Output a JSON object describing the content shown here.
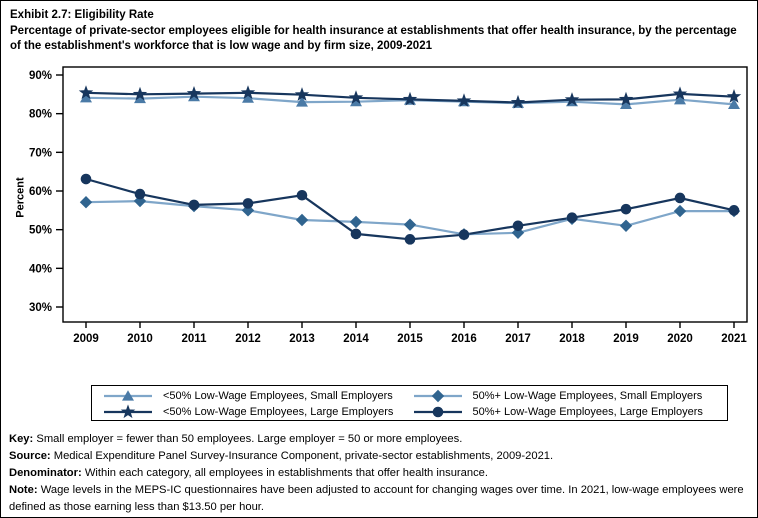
{
  "title": {
    "line1": "Exhibit 2.7: Eligibility Rate",
    "line2": "Percentage of private-sector employees eligible for health insurance at establishments that offer health insurance, by the percentage of the establishment's workforce that is low wage and by firm size, 2009-2021"
  },
  "chart_data": {
    "type": "line",
    "x": [
      2009,
      2010,
      2011,
      2012,
      2013,
      2014,
      2015,
      2016,
      2017,
      2018,
      2019,
      2020,
      2021
    ],
    "y_axis": {
      "label": "Percent",
      "ticks": [
        90,
        80,
        70,
        60,
        50,
        40,
        30
      ],
      "suffix": "%",
      "min": 30,
      "max": 90
    },
    "grid": false,
    "legend_position": "bottom",
    "series": [
      {
        "name": "<50% Low-Wage Employees, Small Employers",
        "marker": "triangle",
        "color": "#4A7AA6",
        "line_color": "#7FA6C9",
        "values": [
          84.1,
          83.9,
          84.4,
          84.0,
          83.0,
          83.1,
          83.5,
          83.1,
          82.7,
          83.1,
          82.4,
          83.6,
          82.4
        ]
      },
      {
        "name": "50%+ Low-Wage Employees, Small Employers",
        "marker": "diamond",
        "color": "#30648F",
        "line_color": "#7FA6C9",
        "values": [
          57.1,
          57.4,
          56.1,
          55.0,
          52.5,
          52.0,
          51.3,
          48.8,
          49.2,
          52.8,
          51.0,
          54.8,
          54.8
        ]
      },
      {
        "name": "<50% Low-Wage Employees, Large Employers",
        "marker": "star",
        "color": "#17365D",
        "line_color": "#17365D",
        "values": [
          85.4,
          85.0,
          85.2,
          85.4,
          84.9,
          84.1,
          83.7,
          83.3,
          82.9,
          83.6,
          83.7,
          85.1,
          84.4
        ]
      },
      {
        "name": "50%+ Low-Wage Employees, Large Employers",
        "marker": "circle",
        "color": "#17365D",
        "line_color": "#17365D",
        "values": [
          63.1,
          59.2,
          56.4,
          56.8,
          58.9,
          48.9,
          47.5,
          48.7,
          51.0,
          53.1,
          55.3,
          58.2,
          55.0
        ]
      }
    ]
  },
  "notes": [
    {
      "label": "Key:",
      "text": "Small employer = fewer than 50 employees. Large employer = 50 or more employees."
    },
    {
      "label": "Source:",
      "text": "Medical Expenditure Panel Survey-Insurance Component, private-sector establishments, 2009-2021."
    },
    {
      "label": "Denominator:",
      "text": "Within each category, all employees in establishments that offer health insurance."
    },
    {
      "label": "Note:",
      "text": "Wage levels in the MEPS-IC questionnaires have been adjusted to account for changing wages over time. In 2021, low-wage employees were defined as those earning less than $13.50 per hour."
    }
  ]
}
